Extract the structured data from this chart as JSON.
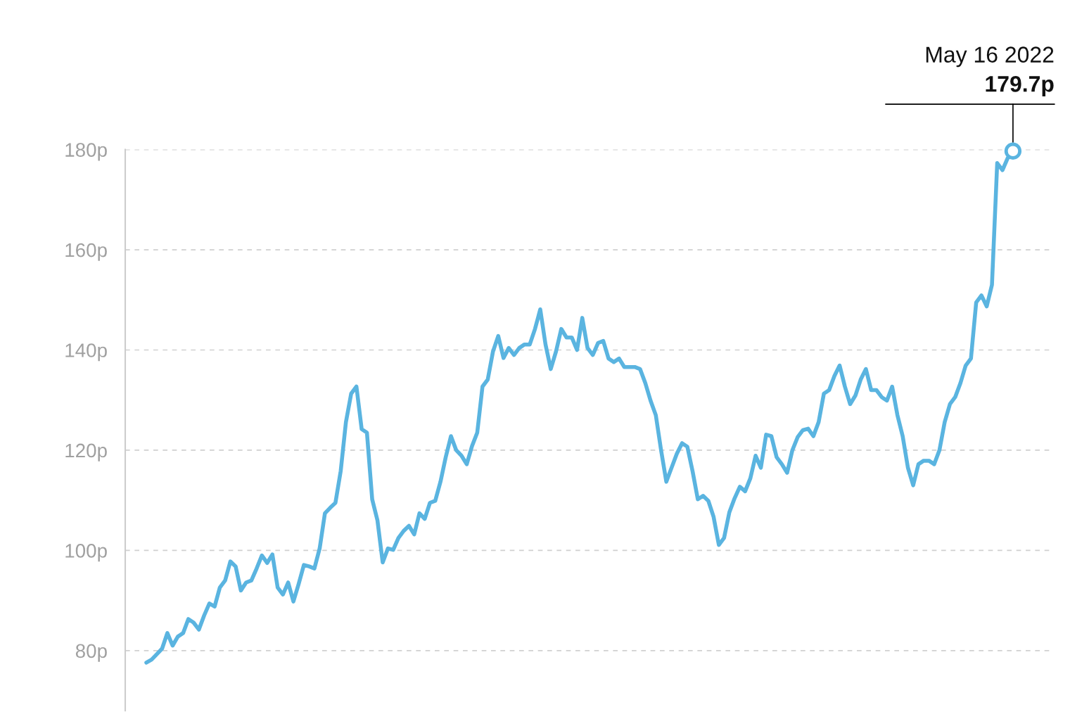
{
  "chart_data": {
    "type": "line",
    "categories": [
      null,
      null,
      null,
      null,
      null,
      null,
      null,
      null,
      null,
      null,
      null,
      null,
      null,
      null,
      null,
      null,
      null,
      null,
      null,
      null,
      null,
      null,
      null,
      null,
      null,
      null,
      null,
      null,
      null,
      null,
      null,
      null,
      null,
      null,
      null,
      null,
      null,
      null,
      null,
      null,
      null,
      null,
      null,
      null,
      null,
      null,
      null,
      null,
      null,
      null,
      null,
      null,
      null,
      null,
      null,
      null,
      null,
      null,
      null,
      null,
      null,
      null,
      null,
      null,
      null,
      null,
      null,
      null,
      null,
      null,
      null,
      null,
      null,
      null,
      null,
      null,
      null,
      null,
      null,
      null,
      null,
      null,
      null,
      null,
      null,
      null,
      null,
      null,
      null,
      null,
      null,
      null,
      null,
      null,
      null,
      null,
      null,
      null,
      null,
      null,
      null,
      null,
      null,
      null,
      null,
      null,
      null,
      null,
      null,
      null,
      null,
      null,
      null,
      null,
      null,
      null,
      null,
      null,
      null,
      null,
      null,
      null,
      null,
      null,
      null,
      null,
      null,
      null,
      null,
      null,
      null,
      null,
      null,
      null,
      null,
      null,
      null,
      null,
      null,
      null,
      null,
      null,
      null,
      null,
      null,
      null,
      null,
      null,
      null,
      null,
      null,
      null,
      null,
      null,
      null,
      null,
      null,
      null,
      null,
      null,
      null,
      null,
      null,
      null,
      null,
      null
    ],
    "series": [
      {
        "color": "#5ab4e0",
        "values": [
          77.6,
          78.2,
          79.3,
          80.4,
          83.5,
          81,
          82.8,
          83.5,
          86.3,
          85.6,
          84.2,
          87,
          89.4,
          88.8,
          92.6,
          94,
          97.8,
          96.8,
          92,
          93.6,
          94,
          96.4,
          99,
          97.5,
          99.2,
          92.6,
          91.2,
          93.6,
          89.8,
          93.3,
          97.1,
          96.8,
          96.4,
          100.4,
          107.4,
          108.5,
          109.5,
          115.8,
          125.6,
          131.3,
          132.7,
          124.2,
          123.5,
          110.2,
          106,
          97.6,
          100.4,
          100.1,
          102.5,
          103.9,
          104.9,
          103.2,
          107.4,
          106.3,
          109.5,
          109.9,
          113.7,
          118.6,
          122.8,
          120,
          118.9,
          117.2,
          120.8,
          123.5,
          132.7,
          134.1,
          139.7,
          142.8,
          138.4,
          140.4,
          139,
          140.4,
          141.1,
          141.1,
          144.2,
          148.1,
          141.1,
          136.2,
          139.7,
          144.2,
          142.5,
          142.5,
          140,
          146.4,
          140.4,
          139,
          141.4,
          141.8,
          138.3,
          137.6,
          138.3,
          136.6,
          136.6,
          136.6,
          136.2,
          133.4,
          129.9,
          127,
          120,
          113.7,
          116.5,
          119.3,
          121.4,
          120.7,
          115.8,
          110.2,
          110.9,
          109.9,
          106.7,
          101.1,
          102.5,
          107.6,
          110.4,
          112.7,
          111.8,
          114.4,
          118.9,
          116.5,
          123.1,
          122.8,
          118.6,
          117.2,
          115.5,
          120,
          122.6,
          124,
          124.3,
          122.8,
          125.6,
          131.3,
          132,
          134.8,
          136.9,
          132.7,
          129.2,
          130.9,
          134.1,
          136.2,
          132,
          132,
          130.6,
          129.9,
          132.7,
          127,
          122.8,
          116.5,
          113,
          117.2,
          117.9,
          117.9,
          117.2,
          120,
          125.6,
          129.2,
          130.6,
          133.4,
          136.9,
          138.3,
          149.5,
          150.9,
          148.7,
          153,
          177.3,
          175.9,
          178.3,
          179.7
        ]
      }
    ],
    "ylim": [
      68,
      180
    ],
    "yticks": [
      {
        "value": 80,
        "label": "80p"
      },
      {
        "value": 100,
        "label": "100p"
      },
      {
        "value": 120,
        "label": "120p"
      },
      {
        "value": 140,
        "label": "140p"
      },
      {
        "value": 160,
        "label": "160p"
      },
      {
        "value": 180,
        "label": "180p"
      }
    ],
    "grid": "y",
    "tick_labels": "y",
    "line_style": "solid",
    "marker": "none",
    "annotations": [
      "May 16 2022",
      "179.7p"
    ]
  }
}
